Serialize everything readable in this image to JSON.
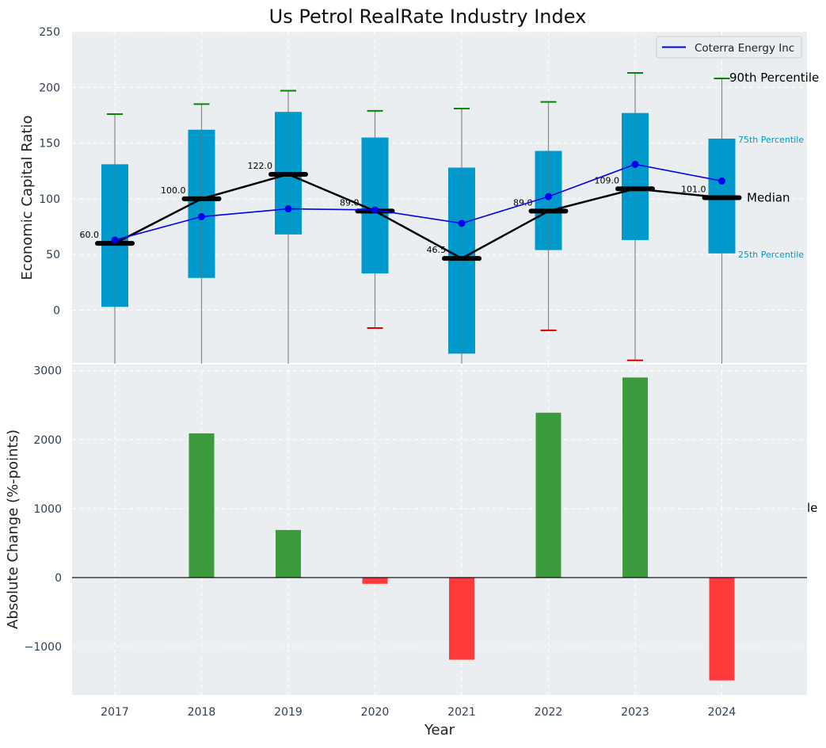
{
  "chart_data": [
    {
      "type": "box-line",
      "title": "Us Petrol RealRate Industry Index",
      "ylabel": "Economic Capital Ratio",
      "ylim": [
        -48,
        250
      ],
      "yticks": [
        0,
        50,
        100,
        150,
        200,
        250
      ],
      "grid": true,
      "legend_position": "top-right",
      "categories": [
        "2017",
        "2018",
        "2019",
        "2020",
        "2021",
        "2022",
        "2023",
        "2024"
      ],
      "boxes": [
        {
          "year": "2017",
          "p10": null,
          "p25": 3,
          "median": 60.0,
          "p75": 131,
          "p90": 176,
          "median_label": "60.0"
        },
        {
          "year": "2018",
          "p10": null,
          "p25": 29,
          "median": 100.0,
          "p75": 162,
          "p90": 185,
          "median_label": "100.0"
        },
        {
          "year": "2019",
          "p10": null,
          "p25": 68,
          "median": 122.0,
          "p75": 178,
          "p90": 197,
          "median_label": "122.0"
        },
        {
          "year": "2020",
          "p10": -16,
          "p25": 33,
          "median": 89.0,
          "p75": 155,
          "p90": 179,
          "median_label": "89.0"
        },
        {
          "year": "2021",
          "p10": null,
          "p25": -39,
          "median": 46.5,
          "p75": 128,
          "p90": 181,
          "median_label": "46.5"
        },
        {
          "year": "2022",
          "p10": -18,
          "p25": 54,
          "median": 89.0,
          "p75": 143,
          "p90": 187,
          "median_label": "89.0"
        },
        {
          "year": "2023",
          "p10": -45,
          "p25": 63,
          "median": 109.0,
          "p75": 177,
          "p90": 213,
          "median_label": "109.0"
        },
        {
          "year": "2024",
          "p10": null,
          "p25": 51,
          "median": 101.0,
          "p75": 154,
          "p90": 208,
          "median_label": "101.0"
        }
      ],
      "series": [
        {
          "name": "Coterra Energy Inc",
          "color": "#0000ee",
          "values": [
            63,
            84,
            91,
            90,
            78,
            102,
            131,
            116
          ]
        }
      ],
      "median_line_color": "#000000",
      "box_color": "#0099cc",
      "p90_cap_color": "#008800",
      "p10_cap_color": "#dd0000",
      "annotations": {
        "p90": "90th Percentile",
        "p75": "75th Percentile",
        "median": "Median",
        "p25": "25th Percentile"
      }
    },
    {
      "type": "bar",
      "xlabel": "Year",
      "ylabel": "Absolute Change (%-points)",
      "ylim": [
        -1700,
        3100
      ],
      "yticks": [
        -1000,
        0,
        1000,
        2000,
        3000
      ],
      "ytick_labels": [
        "−1000",
        "0",
        "1000",
        "2000",
        "3000"
      ],
      "grid": true,
      "categories": [
        "2017",
        "2018",
        "2019",
        "2020",
        "2021",
        "2022",
        "2023",
        "2024"
      ],
      "values": [
        0,
        2090,
        690,
        -90,
        -1190,
        2390,
        2900,
        -1490
      ],
      "positive_color": "#3c9c3c",
      "negative_color": "#ff3b3b",
      "clipped_text": "le"
    }
  ],
  "colors": {
    "plot_background": "#eaeef0",
    "tick_text": "#2e3f55",
    "annotation_blue": "#0099cc"
  }
}
